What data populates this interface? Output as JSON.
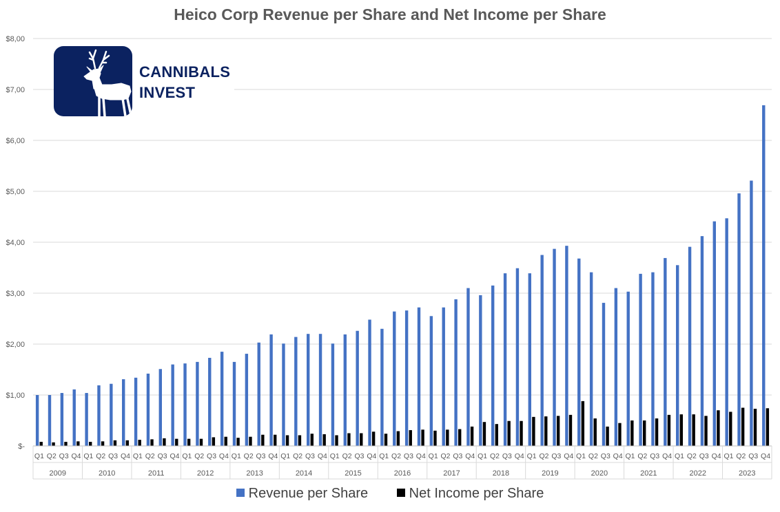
{
  "chart_data": {
    "type": "bar",
    "title": "Heico Corp Revenue per Share and Net Income per Share",
    "xlabel": "",
    "ylabel": "",
    "ylim": [
      0,
      8
    ],
    "yticks": [
      "$-",
      "$1,00",
      "$2,00",
      "$3,00",
      "$4,00",
      "$5,00",
      "$6,00",
      "$7,00",
      "$8,00"
    ],
    "grid": true,
    "legend_position": "bottom",
    "years": [
      "2009",
      "2010",
      "2011",
      "2012",
      "2013",
      "2014",
      "2015",
      "2016",
      "2017",
      "2018",
      "2019",
      "2020",
      "2021",
      "2022",
      "2023"
    ],
    "quarters": [
      "Q1",
      "Q2",
      "Q3",
      "Q4"
    ],
    "series": [
      {
        "name": "Revenue per Share",
        "color": "#4472c4",
        "values": [
          1.0,
          1.0,
          1.04,
          1.11,
          1.04,
          1.19,
          1.22,
          1.31,
          1.34,
          1.42,
          1.51,
          1.6,
          1.62,
          1.65,
          1.73,
          1.85,
          1.65,
          1.81,
          2.03,
          2.19,
          2.01,
          2.14,
          2.2,
          2.2,
          2.01,
          2.19,
          2.26,
          2.48,
          2.3,
          2.64,
          2.66,
          2.72,
          2.55,
          2.72,
          2.88,
          3.1,
          2.96,
          3.15,
          3.39,
          3.49,
          3.39,
          3.75,
          3.87,
          3.93,
          3.68,
          3.41,
          2.81,
          3.1,
          3.03,
          3.38,
          3.41,
          3.69,
          3.55,
          3.91,
          4.12,
          4.41,
          4.47,
          4.96,
          5.21,
          6.69
        ]
      },
      {
        "name": "Net Income per Share",
        "color": "#000000",
        "values": [
          0.08,
          0.07,
          0.08,
          0.09,
          0.08,
          0.09,
          0.11,
          0.11,
          0.12,
          0.13,
          0.15,
          0.14,
          0.14,
          0.14,
          0.17,
          0.18,
          0.16,
          0.18,
          0.22,
          0.22,
          0.21,
          0.21,
          0.24,
          0.23,
          0.21,
          0.25,
          0.25,
          0.28,
          0.24,
          0.29,
          0.31,
          0.32,
          0.3,
          0.32,
          0.33,
          0.38,
          0.47,
          0.43,
          0.49,
          0.49,
          0.57,
          0.58,
          0.59,
          0.61,
          0.88,
          0.54,
          0.38,
          0.45,
          0.5,
          0.5,
          0.54,
          0.61,
          0.62,
          0.62,
          0.59,
          0.7,
          0.67,
          0.75,
          0.73,
          0.74
        ]
      }
    ]
  },
  "logo": {
    "line1": "CANNIBALS",
    "line2": "INVEST",
    "color": "#0b2260"
  },
  "legend": [
    {
      "label": "Revenue per Share",
      "color": "#4472c4"
    },
    {
      "label": "Net Income per Share",
      "color": "#000000"
    }
  ]
}
